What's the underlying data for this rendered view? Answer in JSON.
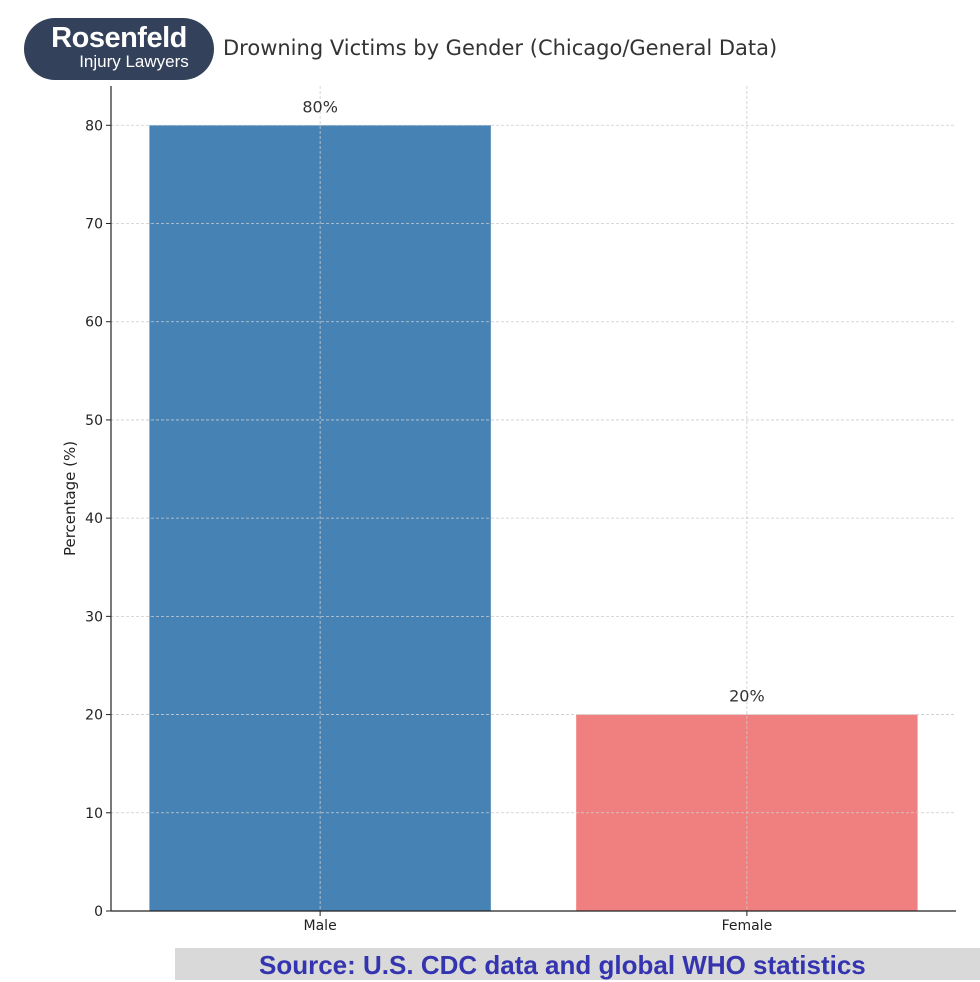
{
  "logo": {
    "line1": "Rosenfeld",
    "line2": "Injury Lawyers"
  },
  "source": "Source:  U.S. CDC data and global WHO statistics",
  "chart_data": {
    "type": "bar",
    "title": "Drowning Victims by Gender (Chicago/General Data)",
    "xlabel": "",
    "ylabel": "Percentage (%)",
    "categories": [
      "Male",
      "Female"
    ],
    "values": [
      80,
      20
    ],
    "data_labels": [
      "80%",
      "20%"
    ],
    "colors": [
      "#4682b4",
      "#f08080"
    ],
    "ylim": [
      0,
      84
    ],
    "yticks": [
      0,
      10,
      20,
      30,
      40,
      50,
      60,
      70,
      80
    ],
    "grid": true,
    "legend": "none"
  }
}
